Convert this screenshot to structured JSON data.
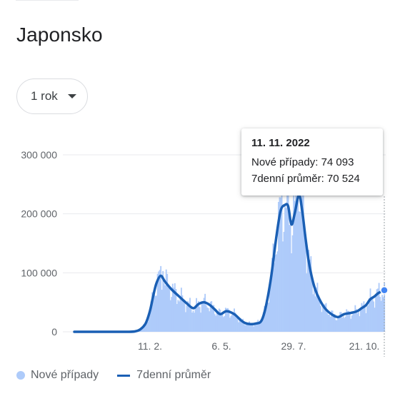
{
  "page": {
    "title": "Japonsko"
  },
  "range_selector": {
    "label": "1 rok",
    "icon": "caret-down-icon"
  },
  "tooltip": {
    "date": "11. 11. 2022",
    "new_cases_label": "Nové případy",
    "new_cases_value": "74 093",
    "avg_label": "7denní průměr",
    "avg_value": "70 524"
  },
  "legend": {
    "bars": "Nové případy",
    "line": "7denní průměr"
  },
  "colors": {
    "bars": "#aecbfa",
    "line": "#1a5fb4",
    "grid": "#e8eaed",
    "text": "#5f6368"
  },
  "chart_data": {
    "type": "bar",
    "ylim": [
      0,
      300000
    ],
    "y_ticks": [
      "0",
      "100 000",
      "200 000",
      "300 000"
    ],
    "x_ticks": [
      "11. 2.",
      "6. 5.",
      "29. 7.",
      "21. 10."
    ],
    "series": [
      {
        "name": "Nové případy",
        "type": "bar"
      },
      {
        "name": "7denní průměr",
        "type": "line"
      }
    ],
    "x_days": [
      0,
      14,
      28,
      42,
      49,
      56,
      61,
      66,
      70,
      73,
      76,
      80,
      84,
      90,
      97,
      103,
      110,
      115,
      120,
      125,
      130,
      135,
      141,
      148,
      154,
      158,
      163,
      168,
      173,
      177,
      182,
      187,
      191,
      195,
      198,
      201,
      204,
      208,
      211,
      214,
      217,
      220,
      223,
      227,
      232,
      238,
      244,
      250,
      256,
      262,
      266,
      270,
      274,
      278,
      281,
      284,
      287
    ],
    "avg_values": [
      0,
      0,
      0,
      0,
      0,
      600,
      4000,
      14000,
      35000,
      60000,
      82000,
      95000,
      85000,
      72000,
      60000,
      50000,
      40000,
      47000,
      50000,
      46000,
      38000,
      30000,
      35000,
      30000,
      20000,
      15000,
      13000,
      14000,
      18000,
      40000,
      90000,
      160000,
      205000,
      215000,
      213000,
      182000,
      200000,
      232000,
      205000,
      160000,
      120000,
      92000,
      72000,
      55000,
      40000,
      30000,
      25000,
      30000,
      32000,
      35000,
      40000,
      45000,
      55000,
      60000,
      65000,
      68000,
      70524
    ],
    "bar_spike_values": [
      103000,
      235000,
      238000
    ]
  }
}
